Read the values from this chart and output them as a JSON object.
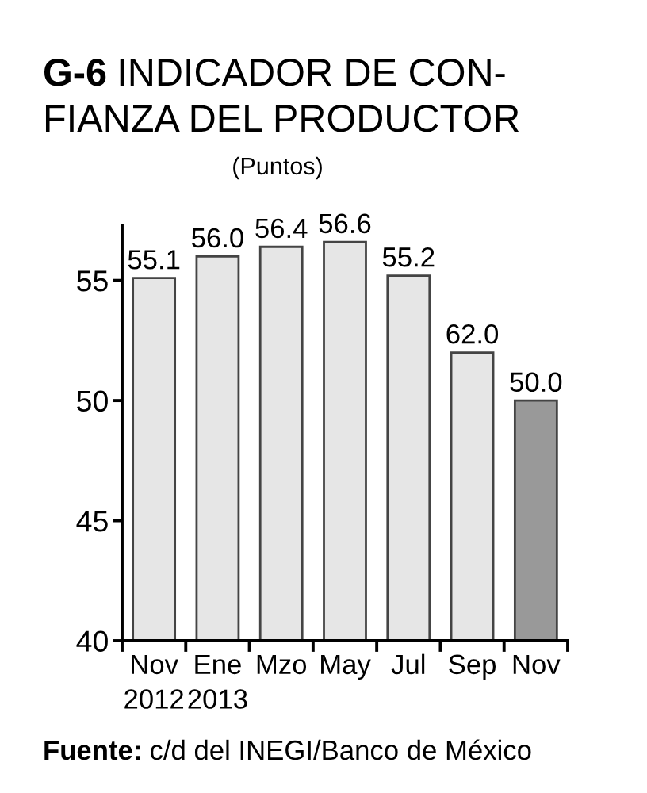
{
  "chart_data": {
    "type": "bar",
    "title": "G-6 INDICADOR DE CON-\nFIANZA DEL PRODUCTOR",
    "subtitle": "(Puntos)",
    "categories": [
      "Nov\n2012",
      "Ene\n2013",
      "Mzo",
      "May",
      "Jul",
      "Sep",
      "Nov"
    ],
    "values": [
      55.1,
      56.0,
      56.4,
      56.6,
      55.2,
      52.0,
      50.0
    ],
    "value_labels": [
      "55.1",
      "56.0",
      "56.4",
      "56.6",
      "55.2",
      null,
      "50.0"
    ],
    "colors": [
      "#e6e6e6",
      "#e6e6e6",
      "#e6e6e6",
      "#e6e6e6",
      "#e6e6e6",
      "#e6e6e6",
      "#999999"
    ],
    "ylim": [
      40,
      57.3
    ],
    "yticks": [
      40,
      45,
      50,
      55
    ],
    "annotations": [
      {
        "text": "62.0",
        "x": "Sep",
        "y": 52.0
      },
      "Fuente: c/d del INEGI/Banco de México"
    ]
  }
}
